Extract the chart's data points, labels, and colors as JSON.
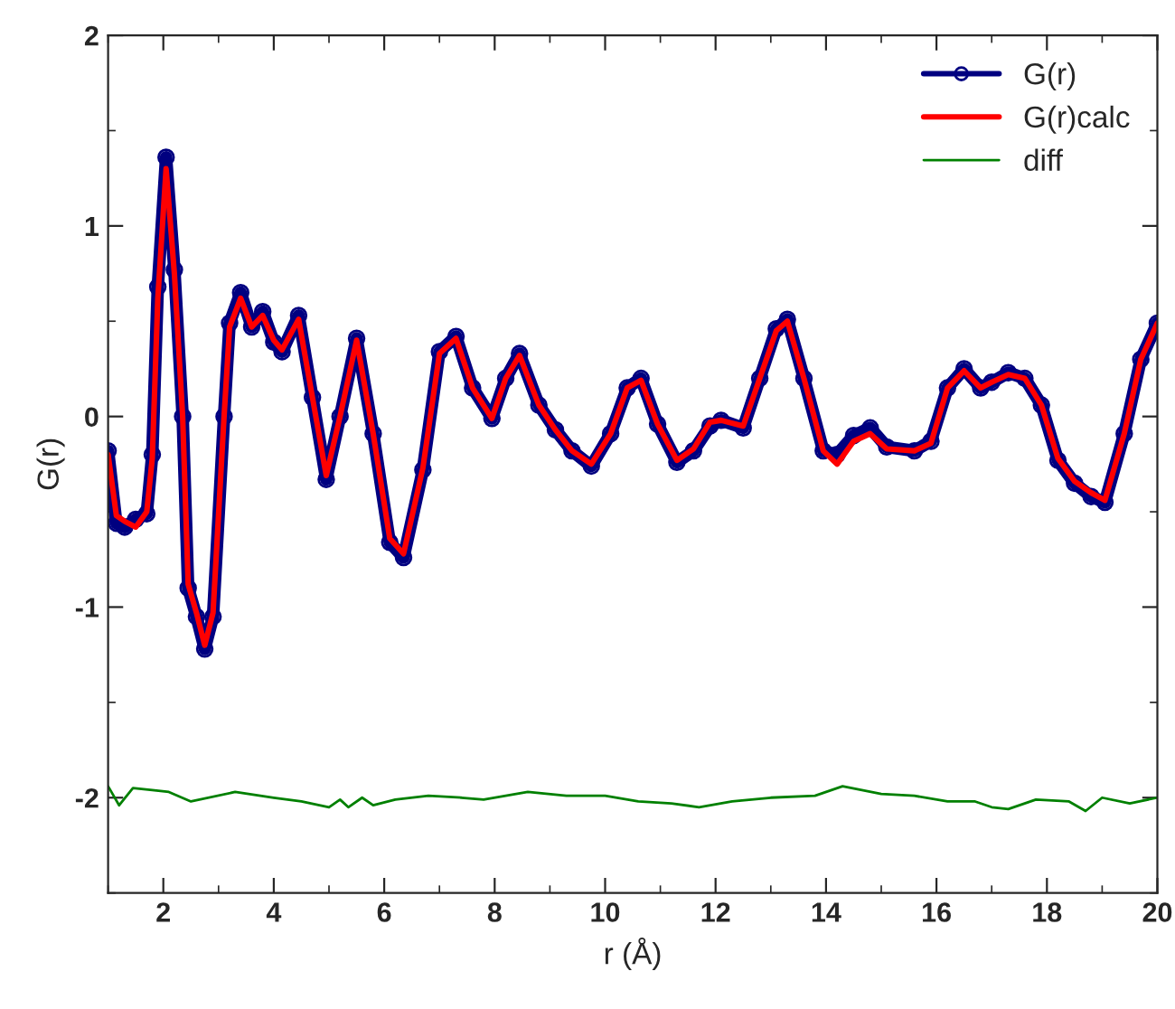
{
  "chart_data": {
    "type": "line",
    "xlabel": "r (Å)",
    "ylabel": "G(r)",
    "xlim": [
      1,
      20
    ],
    "ylim": [
      -2.5,
      2
    ],
    "xticks": [
      2,
      4,
      6,
      8,
      10,
      12,
      14,
      16,
      18,
      20
    ],
    "yticks": [
      -2,
      -1,
      0,
      1,
      2
    ],
    "grid": false,
    "legend": "top right",
    "series": [
      {
        "name": "G(r)",
        "color": "#000080",
        "marker": "circle",
        "x": [
          1.0,
          1.15,
          1.3,
          1.5,
          1.7,
          1.8,
          1.9,
          2.05,
          2.2,
          2.35,
          2.45,
          2.6,
          2.75,
          2.9,
          3.1,
          3.2,
          3.4,
          3.6,
          3.8,
          4.0,
          4.15,
          4.45,
          4.7,
          4.95,
          5.2,
          5.5,
          5.8,
          6.1,
          6.35,
          6.7,
          7.0,
          7.3,
          7.6,
          7.95,
          8.2,
          8.45,
          8.8,
          9.1,
          9.4,
          9.75,
          10.1,
          10.4,
          10.65,
          10.95,
          11.3,
          11.6,
          11.9,
          12.1,
          12.5,
          12.8,
          13.1,
          13.3,
          13.6,
          13.95,
          14.2,
          14.5,
          14.8,
          15.1,
          15.6,
          15.9,
          16.2,
          16.5,
          16.8,
          17.0,
          17.3,
          17.6,
          17.9,
          18.2,
          18.5,
          18.8,
          19.05,
          19.4,
          19.7,
          20.0
        ],
        "values": [
          -0.18,
          -0.56,
          -0.58,
          -0.54,
          -0.51,
          -0.2,
          0.68,
          1.36,
          0.77,
          0.0,
          -0.9,
          -1.05,
          -1.22,
          -1.05,
          0.0,
          0.49,
          0.65,
          0.47,
          0.55,
          0.39,
          0.34,
          0.53,
          0.1,
          -0.33,
          0.0,
          0.41,
          -0.09,
          -0.66,
          -0.74,
          -0.28,
          0.34,
          0.42,
          0.15,
          -0.01,
          0.2,
          0.33,
          0.06,
          -0.07,
          -0.18,
          -0.26,
          -0.09,
          0.15,
          0.2,
          -0.04,
          -0.24,
          -0.18,
          -0.05,
          -0.02,
          -0.06,
          0.2,
          0.46,
          0.51,
          0.2,
          -0.18,
          -0.2,
          -0.1,
          -0.06,
          -0.16,
          -0.18,
          -0.13,
          0.15,
          0.25,
          0.15,
          0.18,
          0.23,
          0.2,
          0.06,
          -0.23,
          -0.35,
          -0.42,
          -0.45,
          -0.09,
          0.3,
          0.49
        ]
      },
      {
        "name": "G(r)calc",
        "color": "#ff0000",
        "marker": "none",
        "x": [
          1.0,
          1.15,
          1.3,
          1.5,
          1.7,
          1.8,
          1.9,
          2.05,
          2.2,
          2.35,
          2.45,
          2.6,
          2.75,
          2.9,
          3.1,
          3.2,
          3.4,
          3.6,
          3.8,
          4.0,
          4.15,
          4.45,
          4.7,
          4.95,
          5.2,
          5.5,
          5.8,
          6.1,
          6.35,
          6.7,
          7.0,
          7.3,
          7.6,
          7.95,
          8.2,
          8.45,
          8.8,
          9.1,
          9.4,
          9.75,
          10.1,
          10.4,
          10.65,
          10.95,
          11.3,
          11.6,
          11.9,
          12.1,
          12.5,
          12.8,
          13.1,
          13.3,
          13.6,
          13.95,
          14.2,
          14.5,
          14.8,
          15.1,
          15.6,
          15.9,
          16.2,
          16.5,
          16.8,
          17.0,
          17.3,
          17.6,
          17.9,
          18.2,
          18.5,
          18.8,
          19.05,
          19.4,
          19.7,
          20.0
        ],
        "values": [
          -0.2,
          -0.52,
          -0.55,
          -0.58,
          -0.5,
          -0.22,
          0.62,
          1.3,
          0.75,
          0.0,
          -0.88,
          -1.03,
          -1.2,
          -1.03,
          0.0,
          0.47,
          0.62,
          0.47,
          0.53,
          0.4,
          0.35,
          0.51,
          0.1,
          -0.31,
          0.0,
          0.4,
          -0.09,
          -0.64,
          -0.72,
          -0.27,
          0.33,
          0.41,
          0.15,
          -0.01,
          0.2,
          0.32,
          0.06,
          -0.07,
          -0.18,
          -0.25,
          -0.09,
          0.15,
          0.19,
          -0.04,
          -0.23,
          -0.17,
          -0.03,
          -0.02,
          -0.05,
          0.2,
          0.45,
          0.5,
          0.2,
          -0.18,
          -0.25,
          -0.13,
          -0.09,
          -0.17,
          -0.18,
          -0.14,
          0.15,
          0.24,
          0.15,
          0.18,
          0.22,
          0.2,
          0.06,
          -0.22,
          -0.34,
          -0.4,
          -0.44,
          -0.09,
          0.3,
          0.49
        ]
      },
      {
        "name": "diff",
        "color": "#008000",
        "marker": "none",
        "x": [
          1.0,
          1.2,
          1.45,
          1.8,
          2.1,
          2.5,
          3.3,
          4.0,
          4.5,
          5.0,
          5.2,
          5.35,
          5.6,
          5.8,
          6.2,
          6.8,
          7.4,
          7.8,
          8.6,
          9.3,
          10.0,
          10.6,
          11.2,
          11.7,
          12.3,
          13.0,
          13.8,
          14.3,
          15.0,
          15.6,
          16.2,
          16.7,
          17.0,
          17.3,
          17.8,
          18.4,
          18.7,
          19.0,
          19.5,
          20.0
        ],
        "values": [
          -1.94,
          -2.04,
          -1.95,
          -1.96,
          -1.97,
          -2.02,
          -1.97,
          -2.0,
          -2.02,
          -2.05,
          -2.01,
          -2.05,
          -2.0,
          -2.04,
          -2.01,
          -1.99,
          -2.0,
          -2.01,
          -1.97,
          -1.99,
          -1.99,
          -2.02,
          -2.03,
          -2.05,
          -2.02,
          -2.0,
          -1.99,
          -1.94,
          -1.98,
          -1.99,
          -2.02,
          -2.02,
          -2.05,
          -2.06,
          -2.01,
          -2.02,
          -2.07,
          -2.0,
          -2.03,
          -2.0
        ]
      }
    ]
  }
}
